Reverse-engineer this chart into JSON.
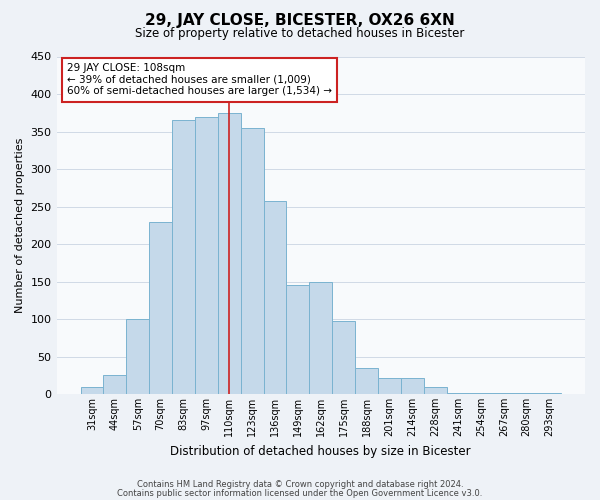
{
  "title": "29, JAY CLOSE, BICESTER, OX26 6XN",
  "subtitle": "Size of property relative to detached houses in Bicester",
  "xlabel": "Distribution of detached houses by size in Bicester",
  "ylabel": "Number of detached properties",
  "categories": [
    "31sqm",
    "44sqm",
    "57sqm",
    "70sqm",
    "83sqm",
    "97sqm",
    "110sqm",
    "123sqm",
    "136sqm",
    "149sqm",
    "162sqm",
    "175sqm",
    "188sqm",
    "201sqm",
    "214sqm",
    "228sqm",
    "241sqm",
    "254sqm",
    "267sqm",
    "280sqm",
    "293sqm"
  ],
  "values": [
    10,
    25,
    100,
    230,
    365,
    370,
    375,
    355,
    258,
    145,
    150,
    97,
    35,
    22,
    22,
    10,
    2,
    2,
    2,
    2,
    2
  ],
  "bar_color": "#c5d9ea",
  "bar_edge_color": "#7ab3d0",
  "vline_color": "#cc2222",
  "vline_x": 6.0,
  "annotation_title": "29 JAY CLOSE: 108sqm",
  "annotation_line1": "← 39% of detached houses are smaller (1,009)",
  "annotation_line2": "60% of semi-detached houses are larger (1,534) →",
  "annotation_box_color": "white",
  "annotation_box_edge": "#cc2222",
  "ylim": [
    0,
    450
  ],
  "yticks": [
    0,
    50,
    100,
    150,
    200,
    250,
    300,
    350,
    400,
    450
  ],
  "footer_line1": "Contains HM Land Registry data © Crown copyright and database right 2024.",
  "footer_line2": "Contains public sector information licensed under the Open Government Licence v3.0.",
  "bg_color": "#eef2f7",
  "plot_bg_color": "#f8fafc",
  "grid_color": "#d0dae6"
}
